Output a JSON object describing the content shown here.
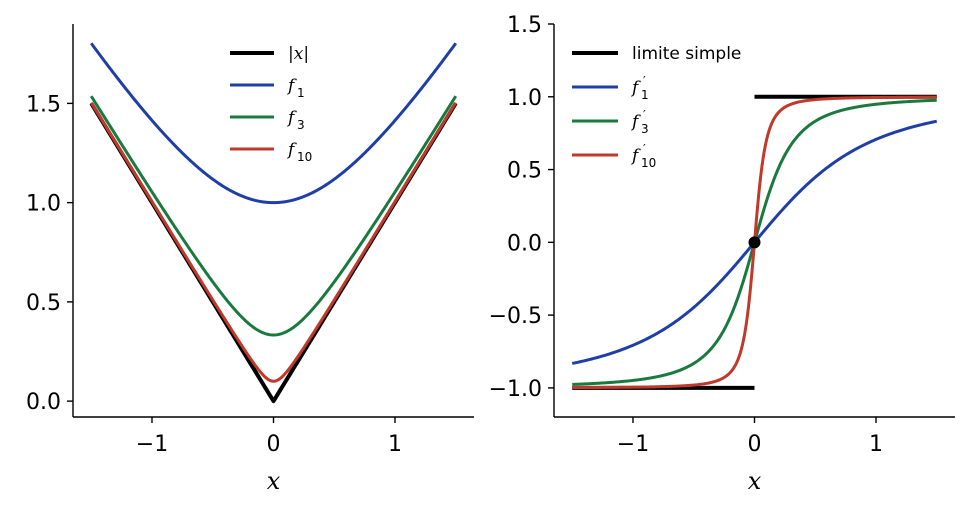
{
  "chart_data": [
    {
      "type": "line",
      "title": "",
      "xlabel": "x",
      "ylabel": "",
      "xlim": [
        -1.65,
        1.65
      ],
      "ylim": [
        -0.08,
        1.9
      ],
      "xticks": [
        -1,
        0,
        1
      ],
      "xtick_labels": [
        "−1",
        "0",
        "1"
      ],
      "yticks": [
        0.0,
        0.5,
        1.0,
        1.5
      ],
      "ytick_labels": [
        "0.0",
        "0.5",
        "1.0",
        "1.5"
      ],
      "grid": false,
      "legend_position": "top-center",
      "series": [
        {
          "name": "|x|",
          "color": "#000000",
          "width": 4.0,
          "formula": "abs",
          "eps": 0,
          "x_range": [
            -1.5,
            1.5
          ]
        },
        {
          "name": "f1",
          "legend_main": "f",
          "legend_sub": "1",
          "color": "#1f3fa8",
          "width": 3.0,
          "formula": "smooth_abs",
          "eps": 1,
          "x_range": [
            -1.5,
            1.5
          ]
        },
        {
          "name": "f3",
          "legend_main": "f",
          "legend_sub": "3",
          "color": "#1a7a3e",
          "width": 3.0,
          "formula": "smooth_abs",
          "eps": 0.3333,
          "x_range": [
            -1.5,
            1.5
          ]
        },
        {
          "name": "f10",
          "legend_main": "f",
          "legend_sub": "10",
          "color": "#c0392b",
          "width": 3.0,
          "formula": "smooth_abs",
          "eps": 0.1,
          "x_range": [
            -1.5,
            1.5
          ]
        }
      ]
    },
    {
      "type": "line",
      "title": "",
      "xlabel": "x",
      "ylabel": "",
      "xlim": [
        -1.65,
        1.65
      ],
      "ylim": [
        -1.2,
        1.5
      ],
      "xticks": [
        -1,
        0,
        1
      ],
      "xtick_labels": [
        "−1",
        "0",
        "1"
      ],
      "yticks": [
        -1.0,
        -0.5,
        0.0,
        0.5,
        1.0,
        1.5
      ],
      "ytick_labels": [
        "−1.0",
        "−0.5",
        "0.0",
        "0.5",
        "1.0",
        "1.5"
      ],
      "grid": false,
      "legend_position": "top-left",
      "series": [
        {
          "name": "limite simple",
          "color": "#000000",
          "width": 4.0,
          "formula": "step_neg",
          "x_range": [
            -1.5,
            0
          ]
        },
        {
          "name": "limite simple (x>0)",
          "legend": false,
          "color": "#000000",
          "width": 4.0,
          "formula": "step_pos",
          "x_range": [
            0,
            1.5
          ]
        },
        {
          "name": "f1'",
          "legend_main": "f",
          "legend_sub": "1",
          "color": "#1f3fa8",
          "width": 3.0,
          "formula": "smooth_sign",
          "eps": 1,
          "x_range": [
            -1.5,
            1.5
          ]
        },
        {
          "name": "f3'",
          "legend_main": "f",
          "legend_sub": "3",
          "color": "#1a7a3e",
          "width": 3.0,
          "formula": "smooth_sign",
          "eps": 0.3333,
          "x_range": [
            -1.5,
            1.5
          ]
        },
        {
          "name": "f10'",
          "legend_main": "f",
          "legend_sub": "10",
          "color": "#c0392b",
          "width": 3.0,
          "formula": "smooth_sign",
          "eps": 0.1,
          "x_range": [
            -1.5,
            1.5
          ]
        }
      ],
      "points": [
        {
          "x": 0,
          "y": 0,
          "color": "#000000"
        }
      ]
    }
  ]
}
